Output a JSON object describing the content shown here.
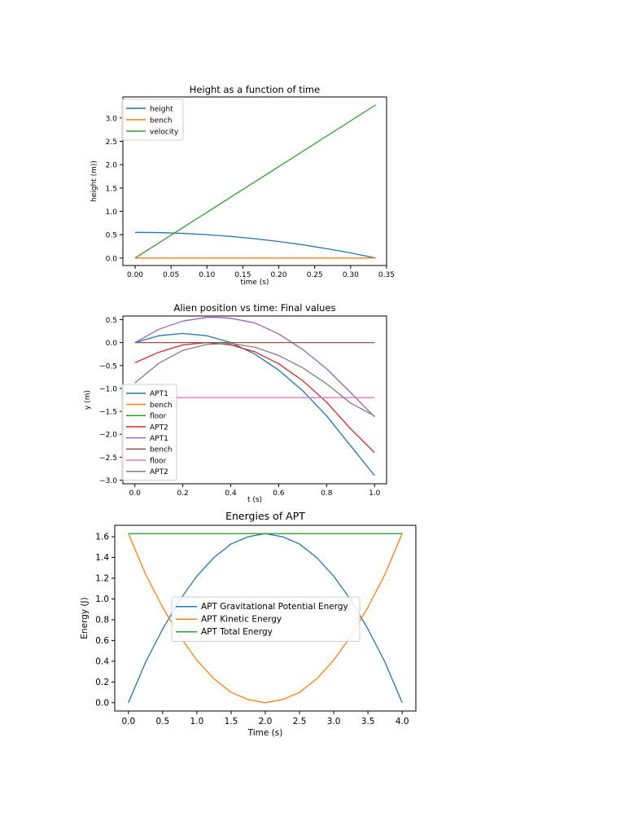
{
  "chart_data": [
    {
      "type": "line",
      "title": "Height as a function of time",
      "xlabel": "time (s)",
      "ylabel": "height (m))",
      "xlim": [
        -0.017,
        0.35
      ],
      "ylim": [
        -0.16,
        3.45
      ],
      "xticks": [
        "0.00",
        "0.05",
        "0.10",
        "0.15",
        "0.20",
        "0.25",
        "0.30",
        "0.35"
      ],
      "yticks": [
        "0.0",
        "0.5",
        "1.0",
        "1.5",
        "2.0",
        "2.5",
        "3.0"
      ],
      "legend_position": "upper-left",
      "series": [
        {
          "name": "height",
          "color": "#1f77b4",
          "x": [
            0,
            0.033,
            0.067,
            0.1,
            0.133,
            0.167,
            0.2,
            0.233,
            0.267,
            0.3,
            0.335
          ],
          "y": [
            0.55,
            0.545,
            0.528,
            0.5,
            0.463,
            0.414,
            0.355,
            0.284,
            0.2,
            0.11,
            0.0
          ]
        },
        {
          "name": "bench",
          "color": "#ff7f0e",
          "x": [
            0,
            0.335
          ],
          "y": [
            0.0,
            0.0
          ]
        },
        {
          "name": "velocity",
          "color": "#2ca02c",
          "x": [
            0,
            0.335
          ],
          "y": [
            0.0,
            3.28
          ]
        }
      ]
    },
    {
      "type": "line",
      "title": "Alien position vs time: Final values",
      "xlabel": "t (s)",
      "ylabel": "y (m)",
      "xlim": [
        -0.05,
        1.05
      ],
      "ylim": [
        -3.08,
        0.58
      ],
      "xticks": [
        "0.0",
        "0.2",
        "0.4",
        "0.6",
        "0.8",
        "1.0"
      ],
      "yticks": [
        "0.5",
        "0.0",
        "−0.5",
        "−1.0",
        "−1.5",
        "−2.0",
        "−2.5",
        "−3.0"
      ],
      "legend_position": "lower-left",
      "series": [
        {
          "name": "APT1",
          "color": "#1f77b4",
          "x": [
            0,
            0.1,
            0.2,
            0.3,
            0.4,
            0.5,
            0.6,
            0.7,
            0.8,
            0.9,
            1.0
          ],
          "y": [
            0,
            0.15,
            0.2,
            0.15,
            0.0,
            -0.25,
            -0.6,
            -1.05,
            -1.6,
            -2.25,
            -2.9
          ]
        },
        {
          "name": "bench",
          "color": "#ff7f0e",
          "x": [],
          "y": []
        },
        {
          "name": "floor",
          "color": "#2ca02c",
          "x": [],
          "y": []
        },
        {
          "name": "APT2",
          "color": "#d62728",
          "x": [
            0,
            0.1,
            0.2,
            0.3,
            0.4,
            0.5,
            0.6,
            0.7,
            0.8,
            0.9,
            1.0
          ],
          "y": [
            -0.44,
            -0.21,
            -0.05,
            0.0,
            -0.05,
            -0.2,
            -0.46,
            -0.83,
            -1.3,
            -1.88,
            -2.4
          ]
        },
        {
          "name": "APT1",
          "color": "#9467bd",
          "x": [
            0,
            0.1,
            0.2,
            0.3,
            0.35,
            0.4,
            0.5,
            0.6,
            0.7,
            0.8,
            0.9,
            1.0
          ],
          "y": [
            0,
            0.29,
            0.47,
            0.55,
            0.55,
            0.53,
            0.43,
            0.19,
            -0.15,
            -0.57,
            -1.09,
            -1.62
          ]
        },
        {
          "name": "bench",
          "color": "#8c564b",
          "x": [
            0,
            1.0
          ],
          "y": [
            0.0,
            0.0
          ]
        },
        {
          "name": "floor",
          "color": "#e377c2",
          "x": [
            0,
            1.0
          ],
          "y": [
            -1.2,
            -1.2
          ]
        },
        {
          "name": "APT2",
          "color": "#7f7f7f",
          "x": [
            0,
            0.1,
            0.2,
            0.3,
            0.4,
            0.5,
            0.6,
            0.7,
            0.8,
            0.9,
            1.0
          ],
          "y": [
            -0.88,
            -0.45,
            -0.17,
            -0.04,
            -0.02,
            -0.1,
            -0.28,
            -0.55,
            -0.9,
            -1.32,
            -1.6
          ]
        }
      ]
    },
    {
      "type": "line",
      "title": "Energies of APT",
      "xlabel": "Time (s)",
      "ylabel": "Energy (J)",
      "xlim": [
        -0.2,
        4.2
      ],
      "ylim": [
        -0.08,
        1.71
      ],
      "xticks": [
        "0.0",
        "0.5",
        "1.0",
        "1.5",
        "2.0",
        "2.5",
        "3.0",
        "3.5",
        "4.0"
      ],
      "yticks": [
        "0.0",
        "0.2",
        "0.4",
        "0.6",
        "0.8",
        "1.0",
        "1.2",
        "1.4",
        "1.6"
      ],
      "legend_position": "center",
      "series": [
        {
          "name": "APT Gravitational Potential Energy",
          "color": "#1f77b4",
          "x": [
            0,
            0.25,
            0.5,
            0.75,
            1.0,
            1.25,
            1.5,
            1.75,
            2.0,
            2.25,
            2.5,
            2.75,
            3.0,
            3.25,
            3.5,
            3.75,
            4.0
          ],
          "y": [
            0.0,
            0.39,
            0.71,
            0.99,
            1.22,
            1.4,
            1.53,
            1.6,
            1.63,
            1.6,
            1.53,
            1.4,
            1.22,
            0.99,
            0.71,
            0.39,
            0.0
          ]
        },
        {
          "name": "APT Kinetic Energy",
          "color": "#ff7f0e",
          "x": [
            0,
            0.25,
            0.5,
            0.75,
            1.0,
            1.25,
            1.5,
            1.75,
            2.0,
            2.25,
            2.5,
            2.75,
            3.0,
            3.25,
            3.5,
            3.75,
            4.0
          ],
          "y": [
            1.63,
            1.24,
            0.92,
            0.64,
            0.41,
            0.23,
            0.1,
            0.03,
            0.0,
            0.03,
            0.1,
            0.23,
            0.41,
            0.64,
            0.92,
            1.24,
            1.63
          ]
        },
        {
          "name": "APT Total Energy",
          "color": "#2ca02c",
          "x": [
            0,
            4.0
          ],
          "y": [
            1.63,
            1.63
          ]
        }
      ]
    }
  ]
}
